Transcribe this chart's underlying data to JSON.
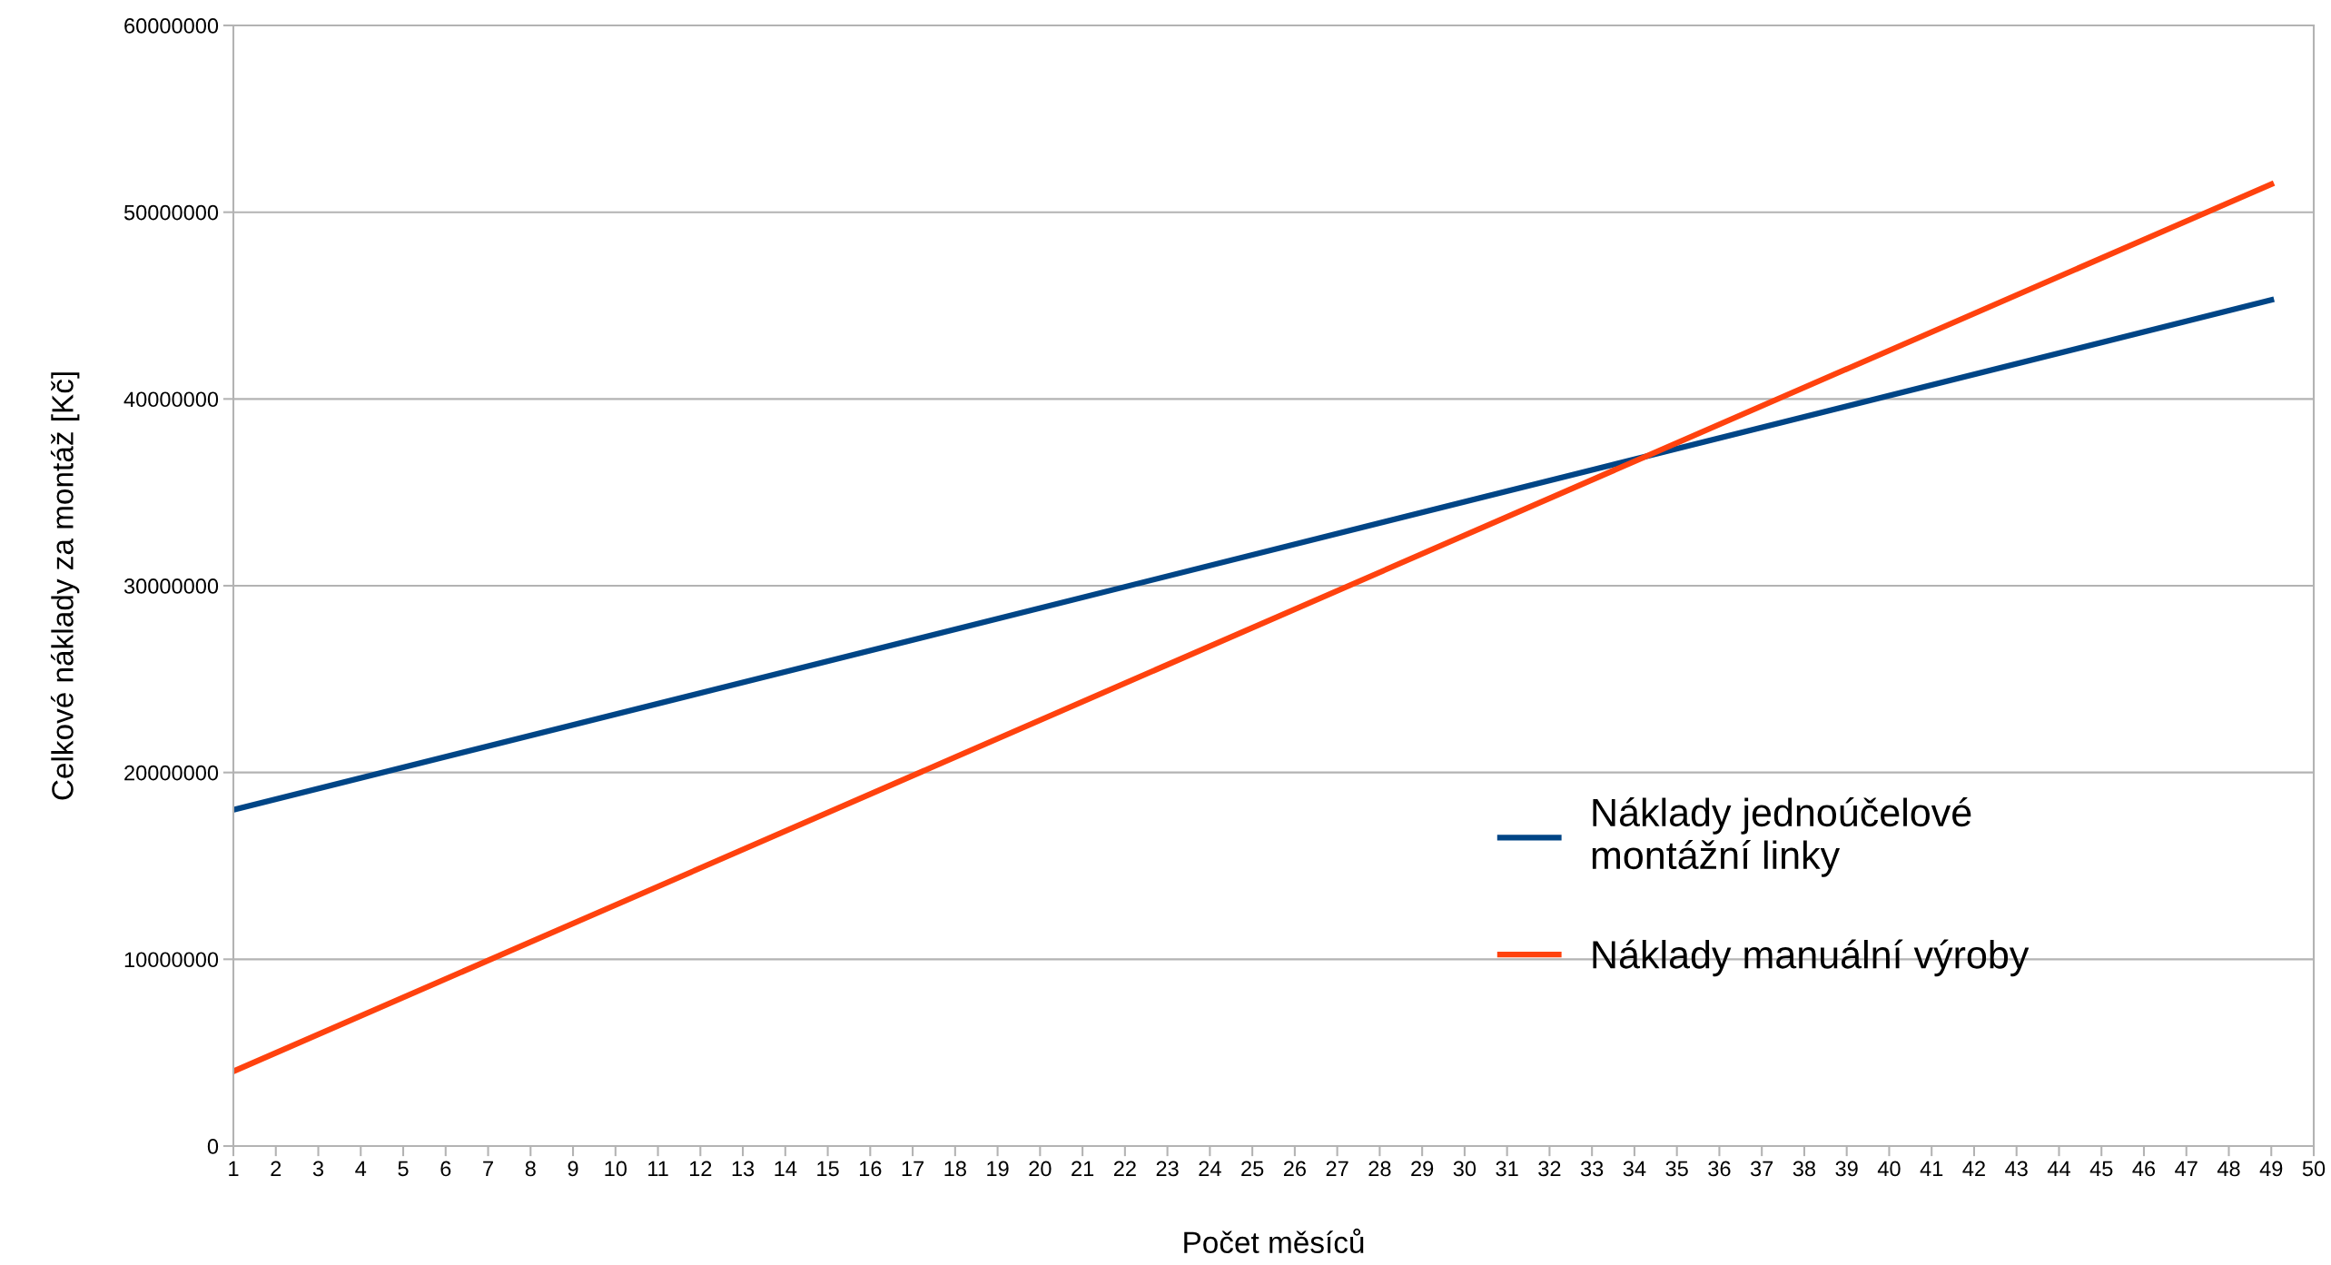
{
  "chart_data": {
    "type": "line",
    "xlabel": "Počet měsíců",
    "ylabel": "Celkové náklady za montáž [Kč]",
    "series": [
      {
        "name": "Náklady jednoúčelové\nmontážní linky",
        "color": "#004586",
        "values": [
          18000000,
          45300000
        ]
      },
      {
        "name": "Náklady manuální výroby",
        "color": "#ff420e",
        "values": [
          4000000,
          51500000
        ]
      }
    ],
    "x": [
      1,
      49
    ],
    "xlim": [
      1,
      50
    ],
    "xticks": [
      1,
      2,
      3,
      4,
      5,
      6,
      7,
      8,
      9,
      10,
      11,
      12,
      13,
      14,
      15,
      16,
      17,
      18,
      19,
      20,
      21,
      22,
      23,
      24,
      25,
      26,
      27,
      28,
      29,
      30,
      31,
      32,
      33,
      34,
      35,
      36,
      37,
      38,
      39,
      40,
      41,
      42,
      43,
      44,
      45,
      46,
      47,
      48,
      49,
      50
    ],
    "ylim": [
      0,
      60000000
    ],
    "yticks": [
      0,
      10000000,
      20000000,
      30000000,
      40000000,
      50000000,
      60000000
    ],
    "grid": "y",
    "legend": "lower right",
    "marker": "none",
    "line_style": "solid"
  }
}
